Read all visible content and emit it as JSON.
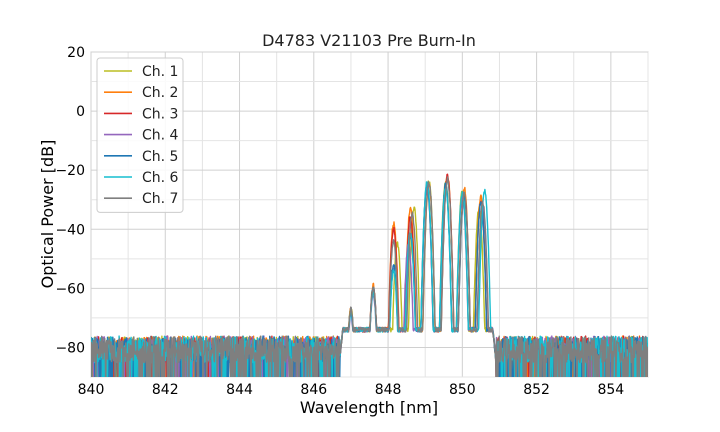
{
  "chart_data": {
    "type": "line",
    "title": "D4783 V21103 Pre Burn-In",
    "xlabel": "Wavelength [nm]",
    "ylabel": "Optical Power [dB]",
    "xlim": [
      840,
      855
    ],
    "ylim": [
      -90,
      20
    ],
    "xticks": [
      840,
      842,
      844,
      846,
      848,
      850,
      852,
      854
    ],
    "yticks": [
      20,
      0,
      -20,
      -40,
      -60,
      -80
    ],
    "grid": true,
    "legend_position": "top-left",
    "noise_floor_db": -82,
    "series": [
      {
        "name": "Ch. 1",
        "color": "#bcbd22",
        "peaks": [
          [
            847.0,
            -67
          ],
          [
            847.6,
            -60
          ],
          [
            848.25,
            -45
          ],
          [
            848.7,
            -33
          ],
          [
            849.1,
            -24
          ],
          [
            849.55,
            -24
          ],
          [
            850.0,
            -27
          ],
          [
            850.45,
            -33
          ]
        ]
      },
      {
        "name": "Ch. 2",
        "color": "#ff7f0e",
        "peaks": [
          [
            847.0,
            -67
          ],
          [
            847.6,
            -59
          ],
          [
            848.15,
            -38
          ],
          [
            848.6,
            -33
          ],
          [
            849.1,
            -25
          ],
          [
            849.6,
            -22
          ],
          [
            850.05,
            -26
          ],
          [
            850.5,
            -29
          ]
        ]
      },
      {
        "name": "Ch. 3",
        "color": "#d62728",
        "peaks": [
          [
            847.0,
            -68
          ],
          [
            847.6,
            -60
          ],
          [
            848.15,
            -40
          ],
          [
            848.6,
            -36
          ],
          [
            849.05,
            -25
          ],
          [
            849.6,
            -22
          ],
          [
            850.05,
            -28
          ],
          [
            850.5,
            -31
          ]
        ]
      },
      {
        "name": "Ch. 4",
        "color": "#9467bd",
        "peaks": [
          [
            847.0,
            -69
          ],
          [
            847.6,
            -62
          ],
          [
            848.15,
            -53
          ],
          [
            848.55,
            -45
          ],
          [
            849.05,
            -26
          ],
          [
            849.55,
            -26
          ],
          [
            850.0,
            -29
          ],
          [
            850.55,
            -33
          ]
        ]
      },
      {
        "name": "Ch. 5",
        "color": "#1f77b4",
        "peaks": [
          [
            847.0,
            -68
          ],
          [
            847.6,
            -60
          ],
          [
            848.15,
            -52
          ],
          [
            848.6,
            -42
          ],
          [
            849.05,
            -25
          ],
          [
            849.55,
            -25
          ],
          [
            850.05,
            -29
          ],
          [
            850.5,
            -31
          ]
        ]
      },
      {
        "name": "Ch. 6",
        "color": "#17becf",
        "peaks": [
          [
            847.0,
            -68
          ],
          [
            847.6,
            -61
          ],
          [
            848.15,
            -54
          ],
          [
            848.6,
            -41
          ],
          [
            849.05,
            -24
          ],
          [
            849.55,
            -26
          ],
          [
            850.0,
            -28
          ],
          [
            850.6,
            -27
          ]
        ]
      },
      {
        "name": "Ch. 7",
        "color": "#7f7f7f",
        "peaks": [
          [
            847.0,
            -67
          ],
          [
            847.6,
            -60
          ],
          [
            848.15,
            -44
          ],
          [
            848.65,
            -35
          ],
          [
            849.1,
            -24
          ],
          [
            849.6,
            -23
          ],
          [
            850.05,
            -28
          ],
          [
            850.55,
            -31
          ]
        ]
      }
    ]
  }
}
